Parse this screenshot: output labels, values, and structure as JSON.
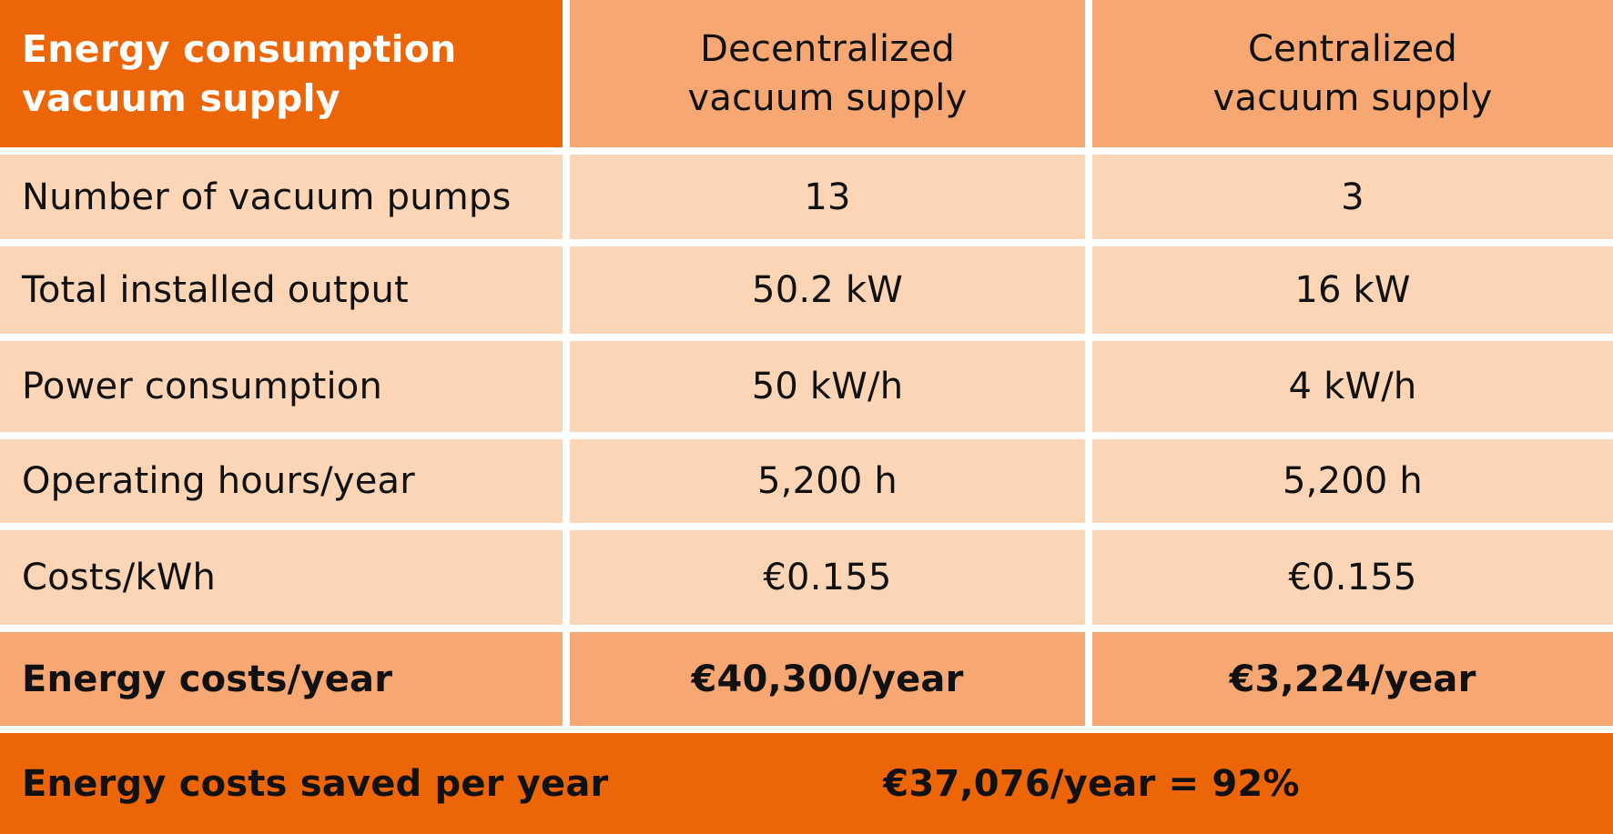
{
  "colors": {
    "dark_orange": "#ec6608",
    "mid_orange": "#f7a872",
    "light_orange": "#fcd5b7"
  },
  "table": {
    "header": {
      "title_line1": "Energy consumption",
      "title_line2": "vacuum supply",
      "col1_line1": "Decentralized",
      "col1_line2": "vacuum supply",
      "col2_line1": "Centralized",
      "col2_line2": "vacuum supply"
    },
    "rows": [
      {
        "label": "Number of vacuum pumps",
        "decentralized": "13",
        "centralized": "3"
      },
      {
        "label": "Total installed output",
        "decentralized": "50.2 kW",
        "centralized": "16 kW"
      },
      {
        "label": "Power consumption",
        "decentralized": "50 kW/h",
        "centralized": "4 kW/h"
      },
      {
        "label": "Operating hours/year",
        "decentralized": "5,200 h",
        "centralized": "5,200 h"
      },
      {
        "label": "Costs/kWh",
        "decentralized": "€0.155",
        "centralized": "€0.155"
      }
    ],
    "totals": {
      "label": "Energy costs/year",
      "decentralized": "€40,300/year",
      "centralized": "€3,224/year"
    },
    "savings": {
      "label": "Energy costs saved per year",
      "value": "€37,076/year = 92%"
    }
  }
}
